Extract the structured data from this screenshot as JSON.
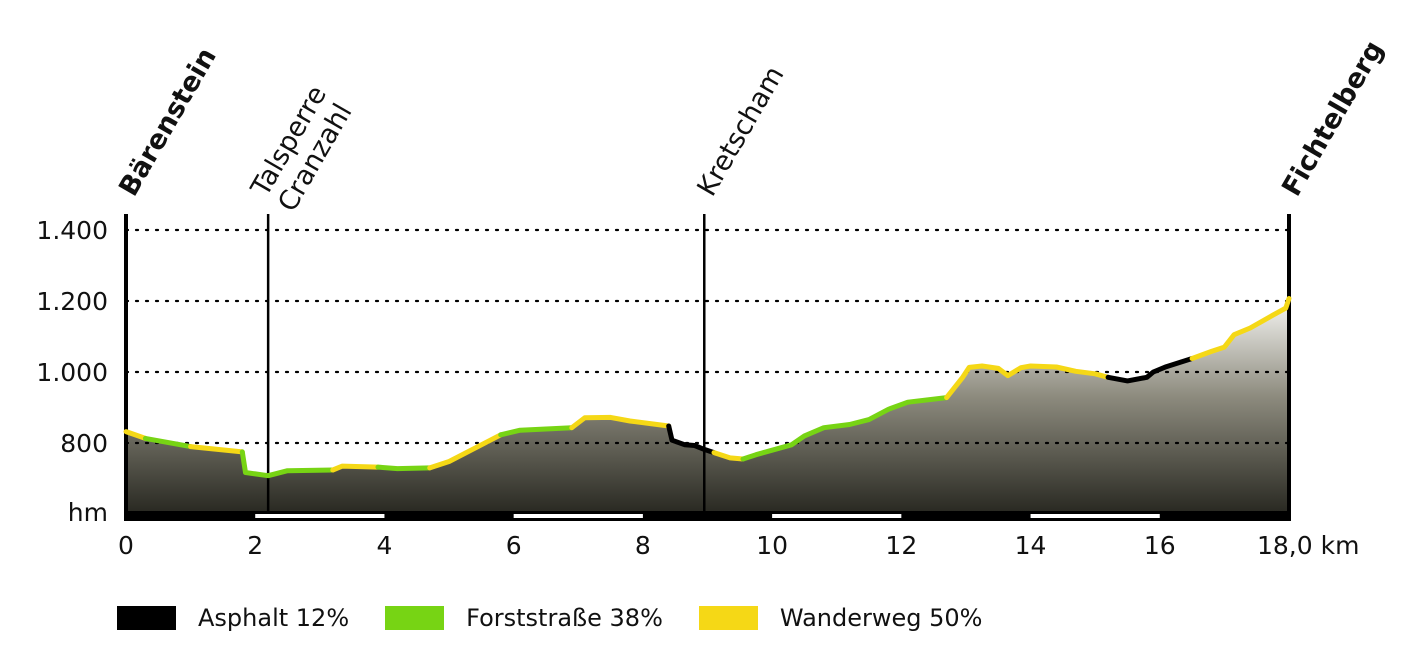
{
  "chart_data": {
    "type": "area",
    "x_unit_label": "18,0 km",
    "y_unit_label": "hm",
    "xlim": [
      0,
      18
    ],
    "ylim": [
      660,
      1460
    ],
    "x_ticks": [
      {
        "value": 0,
        "label": "0"
      },
      {
        "value": 2,
        "label": "2"
      },
      {
        "value": 4,
        "label": "4"
      },
      {
        "value": 6,
        "label": "6"
      },
      {
        "value": 8,
        "label": "8"
      },
      {
        "value": 10,
        "label": "10"
      },
      {
        "value": 12,
        "label": "12"
      },
      {
        "value": 14,
        "label": "14"
      },
      {
        "value": 16,
        "label": "16"
      },
      {
        "value": 18,
        "label": "18,0 km"
      }
    ],
    "y_ticks": [
      {
        "value": 800,
        "label": "800"
      },
      {
        "value": 1000,
        "label": "1.000"
      },
      {
        "value": 1200,
        "label": "1.200"
      },
      {
        "value": 1400,
        "label": "1.400"
      }
    ],
    "grid": "dotted horizontal at y ticks",
    "waypoints": [
      {
        "x": 0,
        "label": "Bärenstein",
        "bold": true
      },
      {
        "x": 2.2,
        "label": "Talsperre\nCranzahl",
        "bold": false
      },
      {
        "x": 8.95,
        "label": "Kretscham",
        "bold": false
      },
      {
        "x": 18,
        "label": "Fichtelberg",
        "bold": true
      }
    ],
    "surfaces": [
      {
        "key": "asphalt",
        "label": "Asphalt 12%",
        "color": "#000000"
      },
      {
        "key": "forst",
        "label": "Forststraße 38%",
        "color": "#77d414"
      },
      {
        "key": "wander",
        "label": "Wanderweg 50%",
        "color": "#f5d816"
      }
    ],
    "profile": [
      {
        "surface": "wander",
        "points": [
          [
            0,
            832
          ],
          [
            0.3,
            813
          ]
        ]
      },
      {
        "surface": "forst",
        "points": [
          [
            0.3,
            813
          ],
          [
            1.0,
            790
          ]
        ]
      },
      {
        "surface": "wander",
        "points": [
          [
            1.0,
            790
          ],
          [
            1.8,
            775
          ]
        ]
      },
      {
        "surface": "forst",
        "points": [
          [
            1.8,
            775
          ],
          [
            1.85,
            717
          ],
          [
            2.2,
            708
          ],
          [
            2.5,
            722
          ],
          [
            3.2,
            724
          ]
        ]
      },
      {
        "surface": "wander",
        "points": [
          [
            3.2,
            724
          ],
          [
            3.35,
            735
          ],
          [
            3.9,
            732
          ]
        ]
      },
      {
        "surface": "forst",
        "points": [
          [
            3.9,
            732
          ],
          [
            4.2,
            728
          ],
          [
            4.7,
            730
          ]
        ]
      },
      {
        "surface": "wander",
        "points": [
          [
            4.7,
            730
          ],
          [
            5.0,
            748
          ],
          [
            5.5,
            795
          ],
          [
            5.8,
            823
          ]
        ]
      },
      {
        "surface": "forst",
        "points": [
          [
            5.8,
            823
          ],
          [
            6.1,
            836
          ],
          [
            6.9,
            843
          ]
        ]
      },
      {
        "surface": "wander",
        "points": [
          [
            6.9,
            843
          ],
          [
            7.1,
            871
          ],
          [
            7.5,
            872
          ],
          [
            7.8,
            862
          ],
          [
            8.4,
            848
          ]
        ]
      },
      {
        "surface": "asphalt",
        "points": [
          [
            8.4,
            848
          ],
          [
            8.45,
            808
          ],
          [
            8.65,
            795
          ],
          [
            8.8,
            793
          ],
          [
            8.95,
            782
          ],
          [
            9.1,
            773
          ]
        ]
      },
      {
        "surface": "wander",
        "points": [
          [
            9.1,
            773
          ],
          [
            9.35,
            758
          ],
          [
            9.55,
            755
          ]
        ]
      },
      {
        "surface": "forst",
        "points": [
          [
            9.55,
            755
          ],
          [
            9.75,
            767
          ],
          [
            10.3,
            795
          ],
          [
            10.5,
            820
          ],
          [
            10.8,
            843
          ],
          [
            11.2,
            852
          ],
          [
            11.5,
            866
          ],
          [
            11.8,
            895
          ],
          [
            12.1,
            915
          ],
          [
            12.7,
            928
          ]
        ]
      },
      {
        "surface": "wander",
        "points": [
          [
            12.7,
            928
          ],
          [
            12.95,
            985
          ],
          [
            13.05,
            1013
          ],
          [
            13.25,
            1017
          ],
          [
            13.5,
            1010
          ],
          [
            13.65,
            990
          ],
          [
            13.85,
            1012
          ],
          [
            14.0,
            1017
          ],
          [
            14.4,
            1014
          ],
          [
            14.7,
            1002
          ],
          [
            15.0,
            995
          ],
          [
            15.2,
            985
          ]
        ]
      },
      {
        "surface": "asphalt",
        "points": [
          [
            15.2,
            985
          ],
          [
            15.5,
            975
          ],
          [
            15.8,
            985
          ],
          [
            15.9,
            1000
          ],
          [
            16.1,
            1015
          ],
          [
            16.5,
            1038
          ]
        ]
      },
      {
        "surface": "wander",
        "points": [
          [
            16.5,
            1038
          ],
          [
            16.8,
            1058
          ],
          [
            17.0,
            1070
          ],
          [
            17.15,
            1105
          ],
          [
            17.4,
            1124
          ],
          [
            17.75,
            1160
          ],
          [
            17.95,
            1180
          ],
          [
            18.0,
            1207
          ]
        ]
      }
    ]
  }
}
